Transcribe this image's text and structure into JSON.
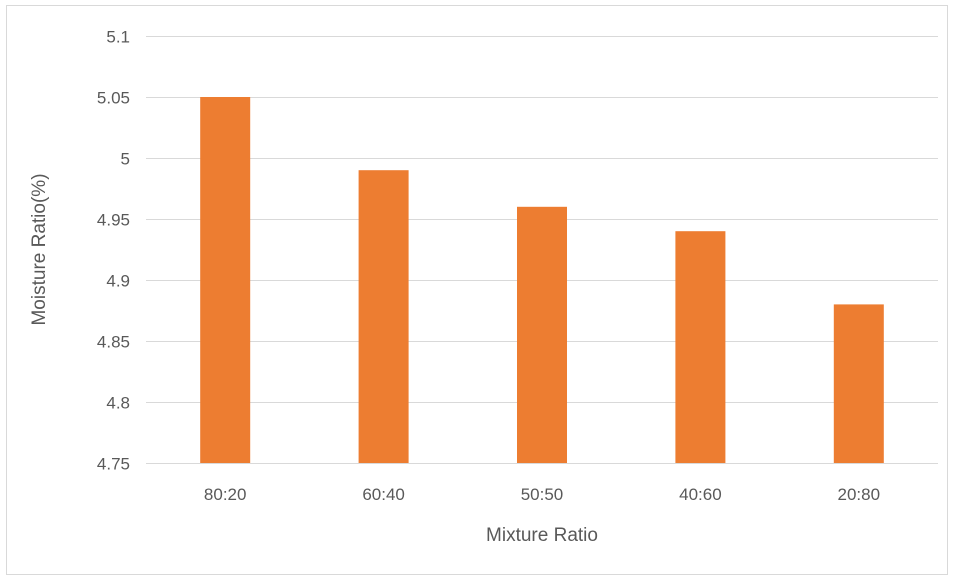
{
  "chart_data": {
    "type": "bar",
    "title": "",
    "xlabel": "Mixture Ratio",
    "ylabel": "Moisture Ratio(%)",
    "categories": [
      "80:20",
      "60:40",
      "50:50",
      "40:60",
      "20:80"
    ],
    "values": [
      5.05,
      4.99,
      4.96,
      4.94,
      4.88
    ],
    "ylim": [
      4.75,
      5.1
    ],
    "yticks": [
      4.75,
      4.8,
      4.85,
      4.9,
      4.95,
      5,
      5.05,
      5.1
    ],
    "grid": true,
    "legend": "none",
    "bar_color": "#ED7D31"
  }
}
